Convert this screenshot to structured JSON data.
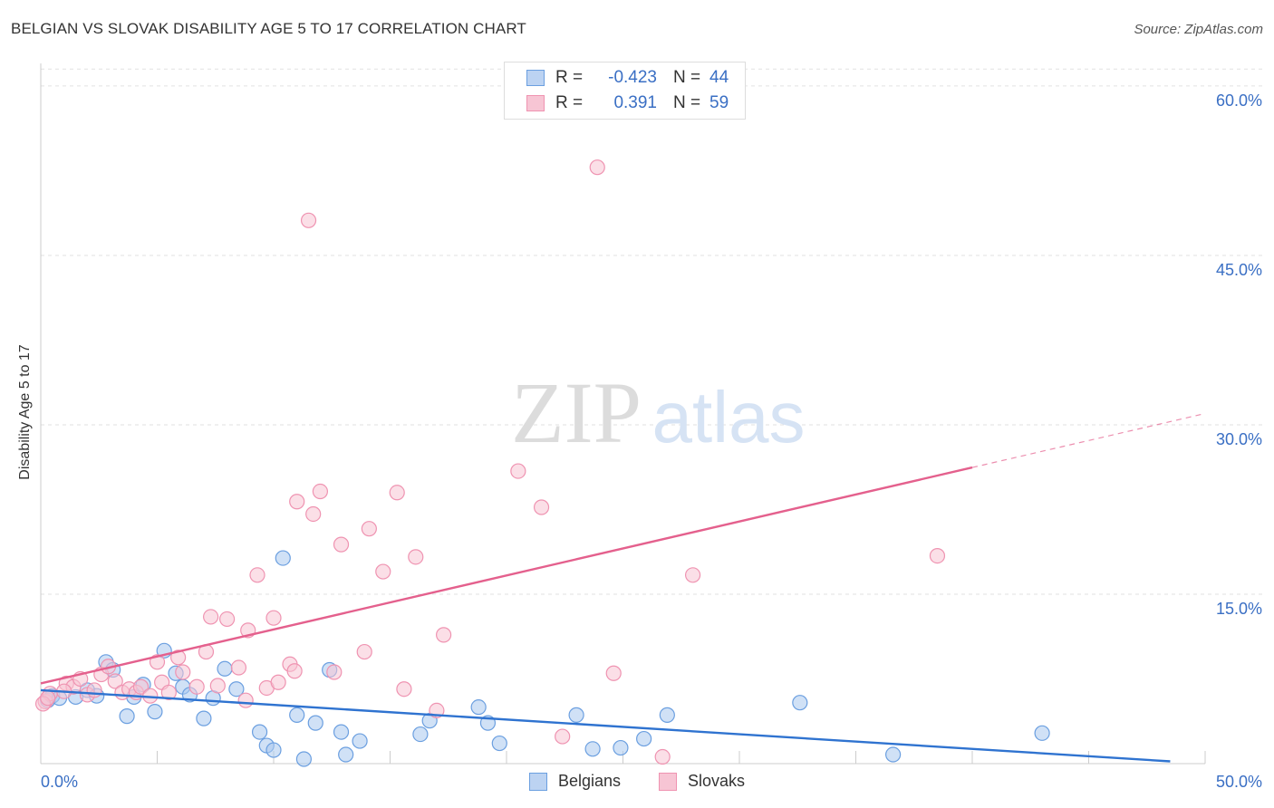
{
  "chart_data": {
    "type": "scatter",
    "title": "BELGIAN VS SLOVAK DISABILITY AGE 5 TO 17 CORRELATION CHART",
    "source": "Source: ZipAtlas.com",
    "xlabel": "",
    "ylabel": "Disability Age 5 to 17",
    "xlim": [
      0,
      50
    ],
    "ylim": [
      0,
      62
    ],
    "x_tick_labels": [
      "0.0%",
      "50.0%"
    ],
    "y_ticks": [
      15,
      30,
      45,
      60
    ],
    "y_tick_labels": [
      "15.0%",
      "30.0%",
      "45.0%",
      "60.0%"
    ],
    "watermark": {
      "zip": "ZIP",
      "atlas": "atlas"
    },
    "legend_stats": [
      {
        "series": "Belgians",
        "r_label": "R =",
        "r_value": "-0.423",
        "n_label": "N =",
        "n_value": "44"
      },
      {
        "series": "Slovaks",
        "r_label": "R =",
        "r_value": "0.391",
        "n_label": "N =",
        "n_value": "59"
      }
    ],
    "series": [
      {
        "name": "Belgians",
        "color": "#6b9fe0",
        "fill": "#a9c8ef",
        "line_color": "#2f73d0",
        "trend": {
          "x_start": 0,
          "y_start": 6.5,
          "x_end": 48.5,
          "y_end": 0.2,
          "x_solid_end": 48.5
        },
        "points": [
          [
            0.3,
            5.6
          ],
          [
            0.5,
            6.0
          ],
          [
            0.8,
            5.8
          ],
          [
            1.5,
            5.9
          ],
          [
            2.0,
            6.5
          ],
          [
            2.4,
            6.0
          ],
          [
            2.8,
            9.0
          ],
          [
            3.1,
            8.3
          ],
          [
            3.7,
            4.2
          ],
          [
            4.0,
            5.9
          ],
          [
            4.4,
            7.0
          ],
          [
            4.9,
            4.6
          ],
          [
            5.3,
            10.0
          ],
          [
            5.8,
            8.0
          ],
          [
            6.1,
            6.8
          ],
          [
            6.4,
            6.1
          ],
          [
            7.0,
            4.0
          ],
          [
            7.4,
            5.8
          ],
          [
            7.9,
            8.4
          ],
          [
            8.4,
            6.6
          ],
          [
            9.4,
            2.8
          ],
          [
            9.7,
            1.6
          ],
          [
            10.0,
            1.2
          ],
          [
            10.4,
            18.2
          ],
          [
            11.0,
            4.3
          ],
          [
            11.3,
            0.4
          ],
          [
            11.8,
            3.6
          ],
          [
            12.4,
            8.3
          ],
          [
            12.9,
            2.8
          ],
          [
            13.1,
            0.8
          ],
          [
            13.7,
            2.0
          ],
          [
            16.3,
            2.6
          ],
          [
            16.7,
            3.8
          ],
          [
            18.8,
            5.0
          ],
          [
            19.2,
            3.6
          ],
          [
            19.7,
            1.8
          ],
          [
            23.0,
            4.3
          ],
          [
            23.7,
            1.3
          ],
          [
            24.9,
            1.4
          ],
          [
            25.9,
            2.2
          ],
          [
            26.9,
            4.3
          ],
          [
            32.6,
            5.4
          ],
          [
            36.6,
            0.8
          ],
          [
            43.0,
            2.7
          ]
        ]
      },
      {
        "name": "Slovaks",
        "color": "#ef93b1",
        "fill": "#f7c5d4",
        "line_color": "#e4608d",
        "trend": {
          "x_start": 0,
          "y_start": 7.1,
          "x_end": 50,
          "y_end": 31.0,
          "x_solid_end": 40.0
        },
        "points": [
          [
            0.2,
            5.5
          ],
          [
            0.4,
            6.2
          ],
          [
            1.1,
            7.1
          ],
          [
            1.4,
            6.8
          ],
          [
            1.7,
            7.5
          ],
          [
            2.0,
            6.1
          ],
          [
            2.3,
            6.5
          ],
          [
            2.6,
            7.9
          ],
          [
            2.9,
            8.6
          ],
          [
            3.2,
            7.3
          ],
          [
            3.5,
            6.3
          ],
          [
            3.8,
            6.6
          ],
          [
            4.1,
            6.3
          ],
          [
            4.3,
            6.8
          ],
          [
            4.7,
            6.0
          ],
          [
            5.0,
            9.0
          ],
          [
            5.2,
            7.2
          ],
          [
            5.5,
            6.3
          ],
          [
            5.9,
            9.4
          ],
          [
            6.1,
            8.1
          ],
          [
            6.7,
            6.8
          ],
          [
            7.1,
            9.9
          ],
          [
            7.3,
            13.0
          ],
          [
            7.6,
            6.9
          ],
          [
            8.0,
            12.8
          ],
          [
            8.5,
            8.5
          ],
          [
            8.8,
            5.6
          ],
          [
            8.9,
            11.8
          ],
          [
            9.3,
            16.7
          ],
          [
            9.7,
            6.7
          ],
          [
            10.0,
            12.9
          ],
          [
            10.2,
            7.2
          ],
          [
            10.7,
            8.8
          ],
          [
            10.9,
            8.2
          ],
          [
            11.0,
            23.2
          ],
          [
            11.5,
            48.1
          ],
          [
            11.7,
            22.1
          ],
          [
            12.0,
            24.1
          ],
          [
            12.6,
            8.1
          ],
          [
            12.9,
            19.4
          ],
          [
            13.9,
            9.9
          ],
          [
            14.1,
            20.8
          ],
          [
            14.7,
            17.0
          ],
          [
            15.3,
            24.0
          ],
          [
            15.6,
            6.6
          ],
          [
            16.1,
            18.3
          ],
          [
            17.0,
            4.7
          ],
          [
            17.3,
            11.4
          ],
          [
            20.5,
            25.9
          ],
          [
            21.5,
            22.7
          ],
          [
            22.4,
            2.4
          ],
          [
            23.9,
            52.8
          ],
          [
            24.6,
            8.0
          ],
          [
            26.7,
            0.6
          ],
          [
            28.0,
            16.7
          ],
          [
            38.5,
            18.4
          ],
          [
            0.1,
            5.3
          ],
          [
            0.3,
            5.8
          ],
          [
            1.0,
            6.4
          ]
        ]
      }
    ]
  }
}
